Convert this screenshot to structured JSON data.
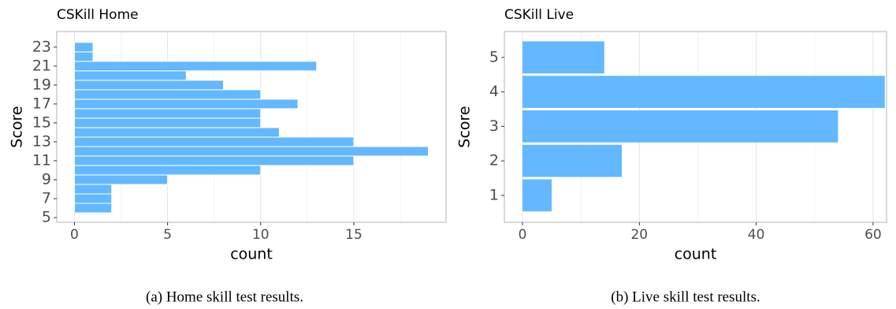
{
  "chart_data": [
    {
      "type": "bar",
      "orientation": "horizontal",
      "title": "CSKill Home",
      "xlabel": "count",
      "ylabel": "Score",
      "caption": "(a) Home skill test results.",
      "categories": [
        6,
        7,
        8,
        9,
        10,
        11,
        12,
        13,
        14,
        15,
        16,
        17,
        18,
        19,
        20,
        21,
        22,
        23
      ],
      "values": [
        2,
        2,
        2,
        5,
        10,
        15,
        19,
        15,
        11,
        10,
        10,
        12,
        10,
        8,
        6,
        13,
        1,
        1
      ],
      "color": "#63b8ff",
      "xlim": [
        -0.95,
        19.95
      ],
      "xticks": [
        0,
        5,
        10,
        15
      ],
      "ylim": [
        4.5,
        24.65
      ],
      "yticks": [
        5,
        7,
        9,
        11,
        13,
        15,
        17,
        19,
        21,
        23
      ],
      "grid": true
    },
    {
      "type": "bar",
      "orientation": "horizontal",
      "title": "CSKill Live",
      "xlabel": "count",
      "ylabel": "Score",
      "caption": "(b) Live skill test results.",
      "categories": [
        1,
        2,
        3,
        4,
        5
      ],
      "values": [
        5,
        17,
        54,
        62,
        14
      ],
      "color": "#63b8ff",
      "xlim": [
        -3.1,
        62.3
      ],
      "xticks": [
        0,
        20,
        40,
        60
      ],
      "ylim": [
        0.22,
        5.75
      ],
      "yticks": [
        1,
        2,
        3,
        4,
        5
      ],
      "grid": true
    }
  ]
}
